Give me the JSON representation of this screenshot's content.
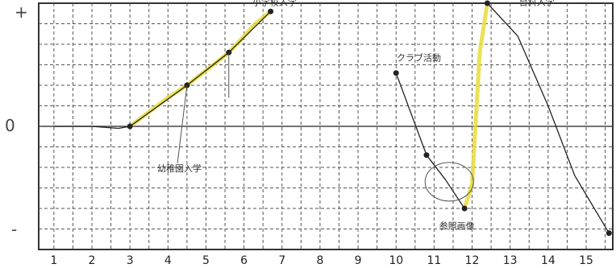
{
  "chart_data": {
    "type": "line",
    "x_ticks": [
      "1",
      "2",
      "3",
      "4",
      "5",
      "6",
      "7",
      "8",
      "9",
      "10",
      "11",
      "12",
      "13",
      "14",
      "15"
    ],
    "y_labels": {
      "top": "+",
      "zero": "0",
      "bottom": "-"
    },
    "ylim": [
      -3,
      3
    ],
    "xlim": [
      0.6,
      15.7
    ],
    "grid": true,
    "series": [
      {
        "color": "#222222",
        "points": [
          [
            1,
            0
          ],
          [
            2,
            0
          ],
          [
            2.7,
            -0.05
          ],
          [
            3,
            0
          ]
        ]
      },
      {
        "color": "#e8dc3a",
        "style": "highlight",
        "points": [
          [
            3,
            0
          ],
          [
            4,
            0.7
          ],
          [
            4.5,
            1.0
          ],
          [
            5.6,
            1.8
          ],
          [
            6.3,
            2.5
          ],
          [
            6.7,
            2.8
          ]
        ]
      },
      {
        "color": "#222222",
        "points": [
          [
            3,
            0
          ],
          [
            4.5,
            1.0
          ],
          [
            5.6,
            1.8
          ],
          [
            6.7,
            2.8
          ]
        ]
      },
      {
        "color": "#222222",
        "points": [
          [
            10,
            1.3
          ],
          [
            10.8,
            -0.7
          ],
          [
            11.3,
            -1.3
          ],
          [
            11.8,
            -2.0
          ]
        ]
      },
      {
        "color": "#e8dc3a",
        "style": "highlight",
        "points": [
          [
            11.8,
            -2.0
          ],
          [
            12.0,
            -1.4
          ],
          [
            12.2,
            1.8
          ],
          [
            12.4,
            3.0
          ]
        ]
      },
      {
        "color": "#222222",
        "points": [
          [
            12.4,
            3.0
          ],
          [
            13.2,
            2.2
          ],
          [
            14.0,
            0.5
          ],
          [
            14.7,
            -1.2
          ],
          [
            15.6,
            -2.6
          ]
        ]
      }
    ],
    "markers": [
      [
        3,
        0
      ],
      [
        4.5,
        1.0
      ],
      [
        5.6,
        1.8
      ],
      [
        6.7,
        2.8
      ],
      [
        10,
        1.3
      ],
      [
        10.8,
        -0.7
      ],
      [
        11.8,
        -2.0
      ],
      [
        12.4,
        3.0
      ],
      [
        15.6,
        -2.6
      ]
    ],
    "annotations": [
      {
        "text": "幼稚園入学",
        "x": 4.3,
        "y": -1.1
      },
      {
        "text": "小学校入学",
        "x": 6.8,
        "y": 2.95
      },
      {
        "text": "クラブ活動",
        "x": 10.6,
        "y": 1.6
      },
      {
        "text": "台科入学",
        "x": 13.7,
        "y": 2.95
      },
      {
        "text": "参照画像",
        "x": 11.6,
        "y": -2.5
      }
    ]
  }
}
